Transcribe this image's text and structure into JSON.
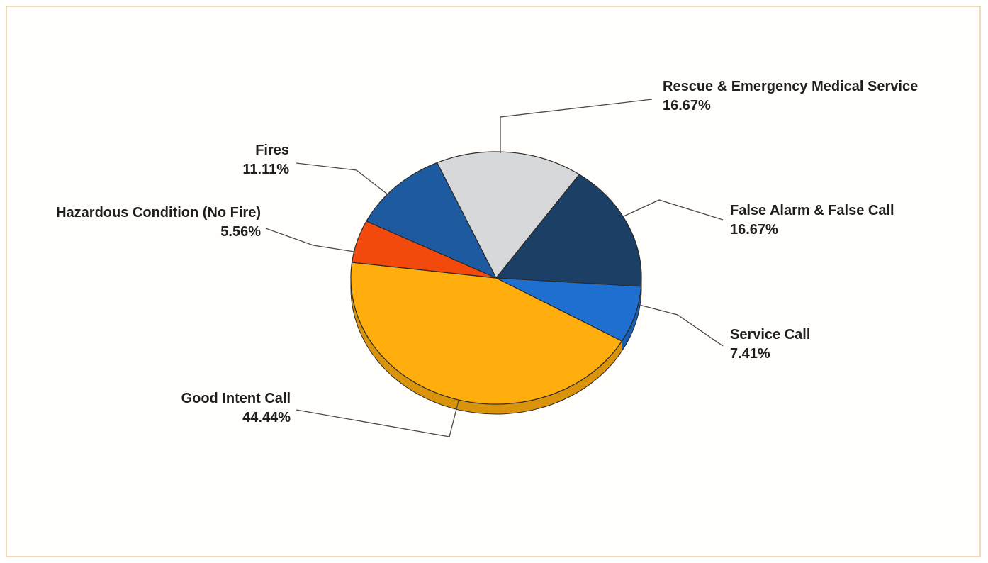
{
  "chart_data": {
    "type": "pie",
    "title": "",
    "style": "3d-tilted",
    "slices": [
      {
        "label": "Rescue & Emergency Medical Service",
        "value": 16.67,
        "value_label": "16.67%",
        "color": "#d6d8da"
      },
      {
        "label": "False Alarm & False Call",
        "value": 16.67,
        "value_label": "16.67%",
        "color": "#1c3f66"
      },
      {
        "label": "Service Call",
        "value": 7.41,
        "value_label": "7.41%",
        "color": "#1f6fd0"
      },
      {
        "label": "Good Intent Call",
        "value": 44.44,
        "value_label": "44.44%",
        "color": "#ffae0d"
      },
      {
        "label": "Hazardous Condition (No Fire)",
        "value": 5.56,
        "value_label": "5.56%",
        "color": "#f24a0c"
      },
      {
        "label": "Fires",
        "value": 11.11,
        "value_label": "11.11%",
        "color": "#1e5aa0"
      }
    ]
  }
}
